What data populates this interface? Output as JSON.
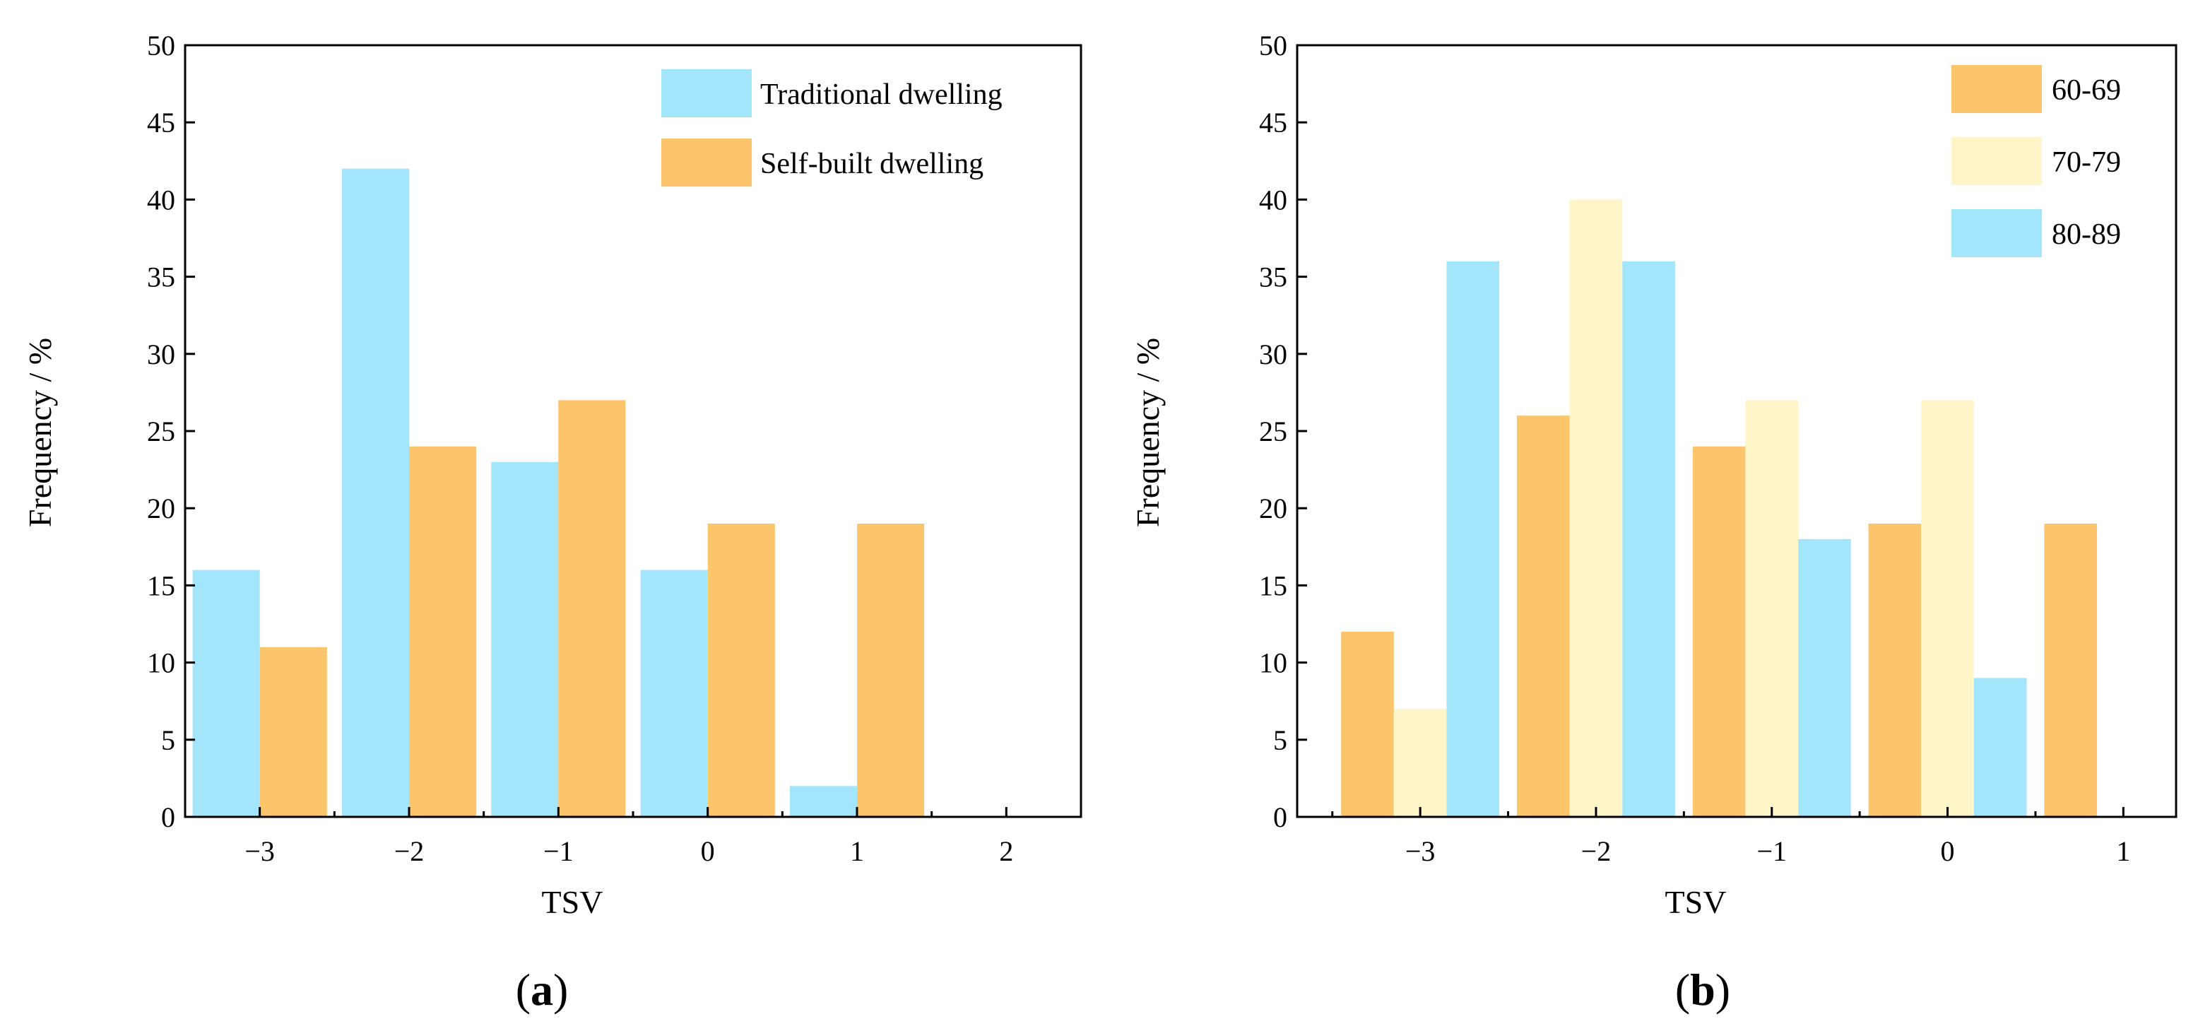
{
  "chart_data": [
    {
      "type": "bar",
      "panel_label": "a",
      "xlabel": "TSV",
      "ylabel": "Frequency / %",
      "ylim": [
        0,
        50
      ],
      "yticks": [
        0,
        5,
        10,
        15,
        20,
        25,
        30,
        35,
        40,
        45,
        50
      ],
      "xlim": [
        -3.5,
        2.5
      ],
      "xticks": [
        -3,
        -2,
        -1,
        0,
        1,
        2
      ],
      "xtick_labels": [
        "−3",
        "−2",
        "−1",
        "0",
        "1",
        "2"
      ],
      "legend_position": "top-right",
      "series": [
        {
          "name": "Traditional dwelling",
          "color": "#a3e6fb",
          "offset": -0.225,
          "width": 0.45,
          "x": [
            -3,
            -2,
            -1,
            0,
            1
          ],
          "values": [
            16,
            42,
            23,
            16,
            2
          ]
        },
        {
          "name": "Self-built dwelling",
          "color": "#fcc56b",
          "offset": 0.225,
          "width": 0.45,
          "x": [
            -3,
            -2,
            -1,
            0,
            1
          ],
          "values": [
            11,
            24,
            27,
            19,
            19
          ]
        }
      ]
    },
    {
      "type": "bar",
      "panel_label": "b",
      "xlabel": "TSV",
      "ylabel": "Frequency / %",
      "ylim": [
        0,
        50
      ],
      "yticks": [
        0,
        5,
        10,
        15,
        20,
        25,
        30,
        35,
        40,
        45,
        50
      ],
      "xlim": [
        -3.7,
        1.3
      ],
      "xticks": [
        -3,
        -2,
        -1,
        0,
        1
      ],
      "xtick_labels": [
        "−3",
        "−2",
        "−1",
        "0",
        "1"
      ],
      "legend_position": "top-right",
      "series": [
        {
          "name": "60-69",
          "color": "#fcc56b",
          "offset": -0.3,
          "width": 0.3,
          "x": [
            -3,
            -2,
            -1,
            0,
            1
          ],
          "values": [
            12,
            26,
            24,
            19,
            19
          ]
        },
        {
          "name": "70-79",
          "color": "#fef5c8",
          "offset": 0.0,
          "width": 0.3,
          "x": [
            -3,
            -2,
            -1,
            0
          ],
          "values": [
            7,
            40,
            27,
            27
          ]
        },
        {
          "name": "80-89",
          "color": "#a3e6fb",
          "offset": 0.3,
          "width": 0.3,
          "x": [
            -3,
            -2,
            -1,
            0
          ],
          "values": [
            36,
            36,
            18,
            9
          ]
        }
      ]
    }
  ]
}
